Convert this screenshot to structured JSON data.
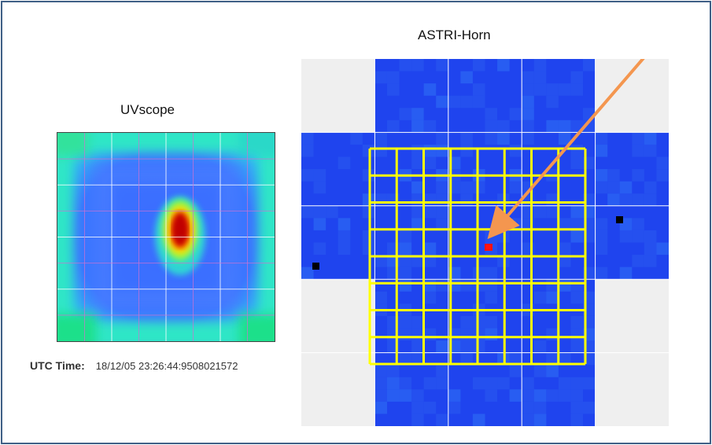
{
  "uvscope": {
    "title": "UVscope"
  },
  "astri": {
    "title": "ASTRI-Horn"
  },
  "status": {
    "utc_label": "UTC Time:",
    "utc_value": "18/12/05 23:26:44:9508021572"
  },
  "colors": {
    "frame_border": "#3f5f86",
    "camera_blue": "#1f44ee",
    "background_gray": "#efefef",
    "yellow_grid": "#ffff00",
    "arrow": "#f4964f",
    "hot_pixel": "#ff1111",
    "dead_pixel": "#000000"
  }
}
